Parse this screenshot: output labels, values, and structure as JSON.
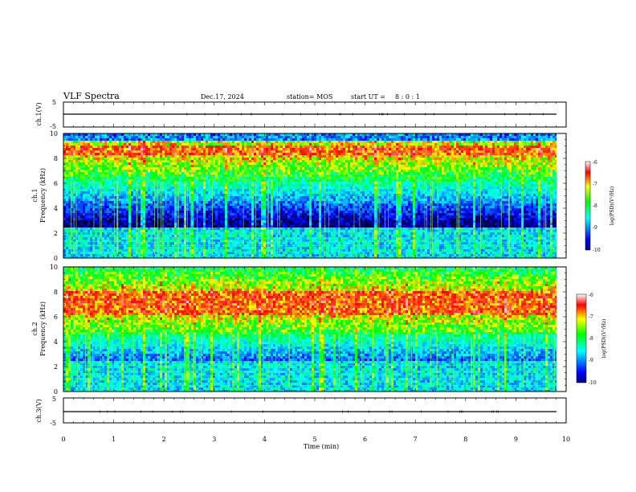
{
  "header": {
    "title": "VLF Spectra",
    "date": "Dec.17, 2024",
    "station": "station= MOS",
    "start_label": "start UT =",
    "start_time": "8 : 0 : 1"
  },
  "chart_data": [
    {
      "type": "line",
      "name": "ch1-voltage",
      "ylabel": "ch.1(V)",
      "ylim": [
        -5,
        5
      ],
      "yticks": [
        "5",
        "-5"
      ],
      "xlim": [
        0,
        10
      ],
      "x": [
        0,
        9.85
      ],
      "y": [
        0,
        0
      ]
    },
    {
      "type": "heatmap",
      "name": "ch1-spectrogram",
      "ylabel": "ch.1",
      "ylabel2": "Frequency (kHz)",
      "xlim": [
        0,
        10
      ],
      "ylim": [
        0,
        10
      ],
      "data_xmax": 9.85,
      "yticks": [
        "0",
        "2",
        "4",
        "6",
        "8",
        "10"
      ],
      "intensity_band_khz": [
        6.2,
        9.5
      ],
      "peak_band_khz": [
        8.2,
        9.0
      ],
      "colorbar": {
        "label": "log(PSD)(V²/Hz)",
        "range": [
          -10,
          -6
        ],
        "ticks": [
          "-6",
          "-7",
          "-8",
          "-9",
          "-10"
        ]
      }
    },
    {
      "type": "heatmap",
      "name": "ch2-spectrogram",
      "ylabel": "ch.2",
      "ylabel2": "Frequency (kHz)",
      "xlim": [
        0,
        10
      ],
      "ylim": [
        0,
        10
      ],
      "data_xmax": 9.85,
      "yticks": [
        "0",
        "2",
        "4",
        "6",
        "8",
        "10"
      ],
      "intensity_band_khz": [
        4.5,
        10
      ],
      "peak_band_khz": [
        6.2,
        8.0
      ],
      "colorbar": {
        "label": "log(PSD)(V²/Hz)",
        "range": [
          -10,
          -6
        ],
        "ticks": [
          "-6",
          "-7",
          "-8",
          "-9",
          "-10"
        ]
      }
    },
    {
      "type": "line",
      "name": "ch3-voltage",
      "ylabel": "ch.3(V)",
      "ylim": [
        -5,
        5
      ],
      "yticks": [
        "5",
        "-5"
      ],
      "xlim": [
        0,
        10
      ],
      "x": [
        0,
        9.85
      ],
      "y": [
        0,
        0
      ]
    }
  ],
  "xaxis": {
    "label": "Time (min)",
    "ticks": [
      "0",
      "1",
      "2",
      "3",
      "4",
      "5",
      "6",
      "7",
      "8",
      "9",
      "10"
    ]
  }
}
